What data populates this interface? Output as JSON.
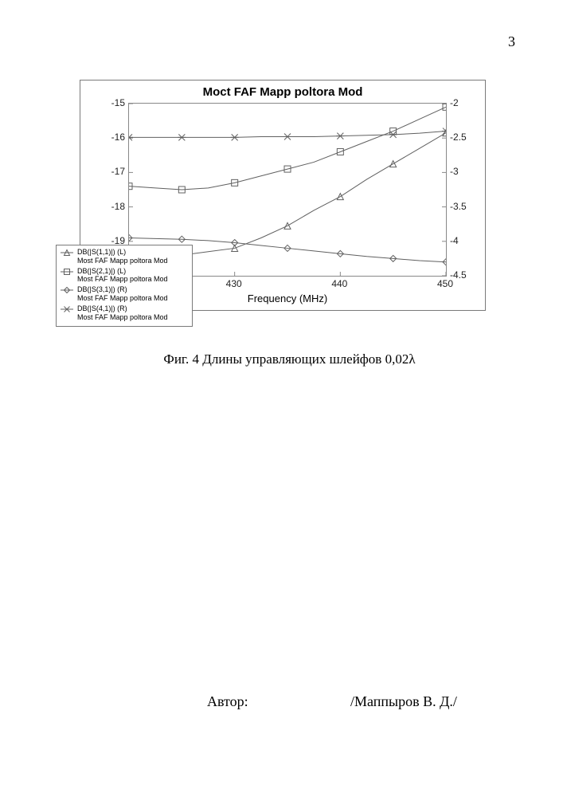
{
  "page": {
    "number": "3",
    "caption": "Фиг. 4   Длины управляющих шлейфов 0,02λ",
    "author_label": "Автор:",
    "author_name": "/Маппыров В. Д./"
  },
  "chart": {
    "type": "line",
    "title": "Moct FAF Mapp poltora Mod",
    "title_fontsize": 15,
    "background_color": "#ffffff",
    "panel_border_color": "#7a7a7a",
    "axis_color": "#888888",
    "tick_font": "Arial",
    "tick_fontsize": 12,
    "xaxis": {
      "label": "Frequency (MHz)",
      "min": 420,
      "max": 450,
      "ticks": [
        430,
        440,
        450
      ],
      "tick_labels": [
        "430",
        "440",
        "450"
      ]
    },
    "y_left": {
      "min": -20,
      "max": -15,
      "ticks": [
        -15,
        -16,
        -17,
        -18,
        -19
      ],
      "tick_labels": [
        "-15",
        "-16",
        "-17",
        "-18",
        "-19"
      ]
    },
    "y_right": {
      "min": -4.5,
      "max": -2,
      "ticks": [
        -2,
        -2.5,
        -3,
        -3.5,
        -4,
        -4.5
      ],
      "tick_labels": [
        "-2",
        "-2.5",
        "-3",
        "-3.5",
        "-4",
        "-4.5"
      ]
    },
    "series": [
      {
        "name": "S11",
        "axis": "left",
        "marker": "triangle",
        "color": "#606060",
        "line_width": 1,
        "x": [
          420,
          422.5,
          425,
          427.5,
          430,
          432.5,
          435,
          437.5,
          440,
          442.5,
          445,
          447.5,
          450
        ],
        "y": [
          -19.4,
          -19.4,
          -19.4,
          -19.3,
          -19.2,
          -18.9,
          -18.55,
          -18.1,
          -17.7,
          -17.2,
          -16.75,
          -16.3,
          -15.85
        ]
      },
      {
        "name": "S21",
        "axis": "left",
        "marker": "square",
        "color": "#606060",
        "line_width": 1,
        "x": [
          420,
          422.5,
          425,
          427.5,
          430,
          432.5,
          435,
          437.5,
          440,
          442.5,
          445,
          447.5,
          450
        ],
        "y": [
          -17.4,
          -17.45,
          -17.5,
          -17.45,
          -17.3,
          -17.1,
          -16.9,
          -16.7,
          -16.4,
          -16.1,
          -15.8,
          -15.45,
          -15.1
        ]
      },
      {
        "name": "S31",
        "axis": "right",
        "marker": "diamond",
        "color": "#606060",
        "line_width": 1,
        "x": [
          420,
          422.5,
          425,
          427.5,
          430,
          432.5,
          435,
          437.5,
          440,
          442.5,
          445,
          447.5,
          450
        ],
        "y": [
          -3.95,
          -3.96,
          -3.97,
          -3.99,
          -4.02,
          -4.06,
          -4.1,
          -4.14,
          -4.18,
          -4.22,
          -4.25,
          -4.28,
          -4.3
        ]
      },
      {
        "name": "S41",
        "axis": "right",
        "marker": "star",
        "color": "#606060",
        "line_width": 1,
        "x": [
          420,
          422.5,
          425,
          427.5,
          430,
          432.5,
          435,
          437.5,
          440,
          442.5,
          445,
          447.5,
          450
        ],
        "y": [
          -2.49,
          -2.49,
          -2.49,
          -2.49,
          -2.49,
          -2.48,
          -2.48,
          -2.48,
          -2.47,
          -2.46,
          -2.45,
          -2.43,
          -2.4
        ]
      }
    ],
    "legend": {
      "items": [
        {
          "marker": "triangle",
          "line1": "DB(|S(1,1)|) (L)",
          "line2": "Most FAF Mapp poltora Mod"
        },
        {
          "marker": "square",
          "line1": "DB(|S(2,1)|) (L)",
          "line2": "Most FAF Mapp poltora Mod"
        },
        {
          "marker": "diamond",
          "line1": "DB(|S(3,1)|) (R)",
          "line2": "Most FAF Mapp poltora Mod"
        },
        {
          "marker": "star",
          "line1": "DB(|S(4,1)|) (R)",
          "line2": "Most FAF Mapp poltora Mod"
        }
      ]
    }
  }
}
